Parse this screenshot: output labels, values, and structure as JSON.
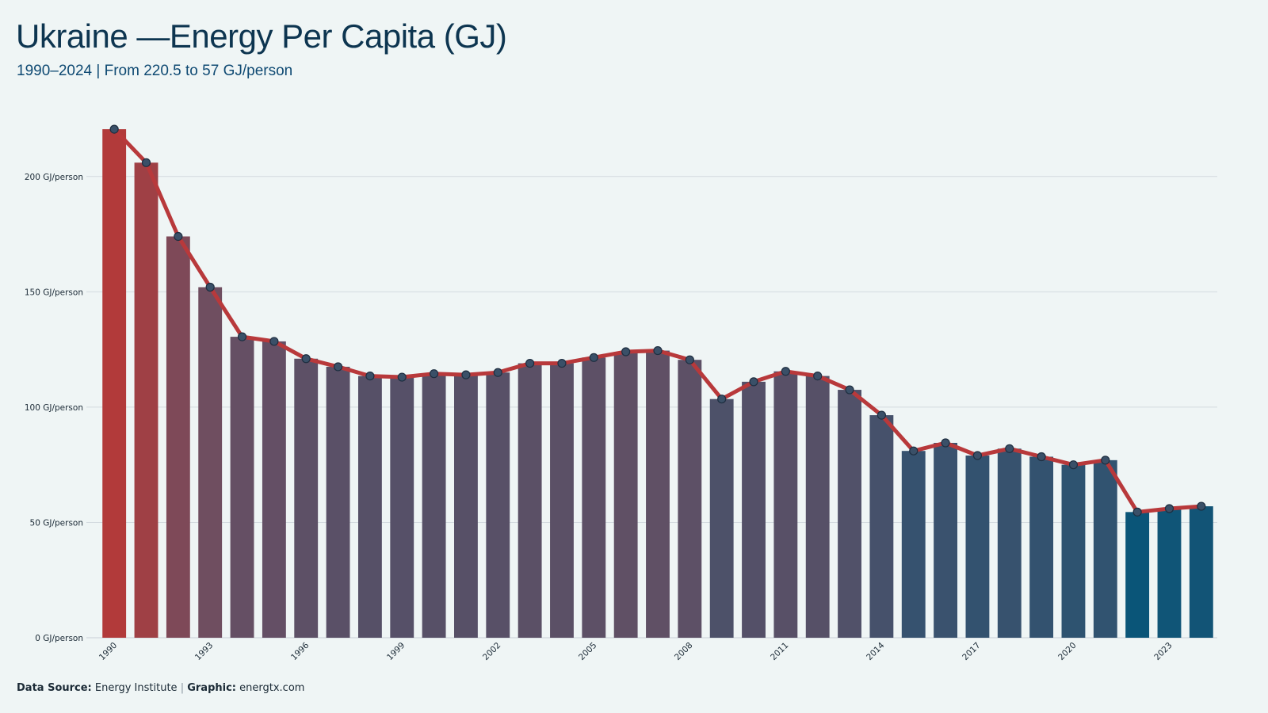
{
  "header": {
    "title": "Ukraine —Energy Per Capita (GJ)",
    "subtitle": "1990–2024 | From 220.5 to 57 GJ/person"
  },
  "footer": {
    "source_label": "Data Source:",
    "source_value": "Energy Institute",
    "separator": "|",
    "graphic_label": "Graphic:",
    "graphic_value": "energtx.com"
  },
  "chart_data": {
    "type": "bar",
    "unit_suffix": " GJ/person",
    "x": [
      1990,
      1991,
      1992,
      1993,
      1994,
      1995,
      1996,
      1997,
      1998,
      1999,
      2000,
      2001,
      2002,
      2003,
      2004,
      2005,
      2006,
      2007,
      2008,
      2009,
      2010,
      2011,
      2012,
      2013,
      2014,
      2015,
      2016,
      2017,
      2018,
      2019,
      2020,
      2021,
      2022,
      2023,
      2024
    ],
    "values": [
      220.5,
      206,
      174,
      152,
      130.5,
      128.5,
      121,
      117.5,
      113.5,
      113,
      114.5,
      114,
      115,
      119,
      119,
      121.5,
      124,
      124.5,
      120.5,
      103.5,
      111,
      115.5,
      113.5,
      107.5,
      96.5,
      81,
      84.5,
      79,
      82,
      78.5,
      75,
      77,
      54.5,
      56,
      57
    ],
    "xtick_labels": [
      "1990",
      "1993",
      "1996",
      "1999",
      "2002",
      "2005",
      "2008",
      "2011",
      "2014",
      "2017",
      "2020",
      "2023"
    ],
    "ytick_values": [
      0,
      50,
      100,
      150,
      200
    ],
    "ylim": [
      0,
      225
    ],
    "grid": true,
    "colors": {
      "bar_high": "#b23a3a",
      "bar_mid": "#6b4f63",
      "bar_low": "#0a5578",
      "line": "#b8393b",
      "marker_fill": "#3a5068",
      "marker_stroke": "#1e2e40",
      "grid": "#d3dadf",
      "axis": "#c8d0d6",
      "tick_text": "#1b2a36"
    }
  }
}
